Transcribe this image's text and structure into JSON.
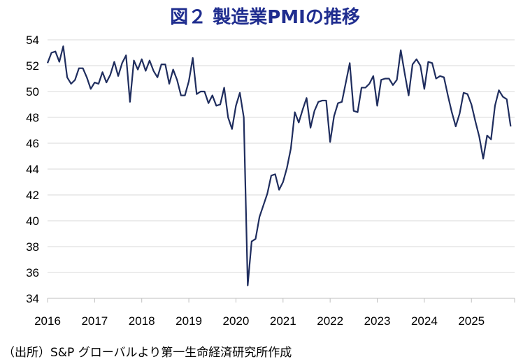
{
  "chart_data": {
    "type": "line",
    "title": "図２ 製造業PMIの推移",
    "source": "（出所）S&P グローバルより第一生命経済研究所作成",
    "ylim": [
      34,
      54
    ],
    "yticks": [
      34,
      36,
      38,
      40,
      42,
      44,
      46,
      48,
      50,
      52,
      54
    ],
    "xlim": [
      2016.0,
      2025.917
    ],
    "xticks": [
      "2016",
      "2017",
      "2018",
      "2019",
      "2020",
      "2021",
      "2022",
      "2023",
      "2024",
      "2025"
    ],
    "grid": true,
    "line_color": "#1f2d5e",
    "series": [
      {
        "values": [
          52.2,
          53.0,
          53.1,
          52.3,
          53.5,
          51.1,
          50.6,
          50.9,
          51.8,
          51.8,
          51.1,
          50.2,
          50.7,
          50.6,
          51.5,
          50.7,
          51.3,
          52.3,
          51.2,
          52.2,
          52.8,
          49.2,
          52.4,
          51.7,
          52.5,
          51.6,
          52.4,
          51.6,
          51.1,
          52.1,
          52.1,
          50.6,
          51.7,
          50.9,
          49.7,
          49.7,
          50.8,
          52.6,
          49.8,
          50.0,
          50.0,
          49.1,
          49.7,
          48.9,
          49.0,
          50.3,
          48.0,
          47.1,
          48.9,
          49.9,
          48.0,
          35.0,
          38.4,
          38.6,
          40.3,
          41.2,
          42.1,
          43.5,
          43.6,
          42.4,
          43.0,
          44.1,
          45.6,
          48.4,
          47.6,
          48.6,
          49.5,
          47.2,
          48.5,
          49.2,
          49.3,
          49.3,
          46.1,
          48.1,
          49.1,
          49.2,
          50.7,
          52.2,
          48.5,
          48.4,
          50.3,
          50.3,
          50.6,
          51.2,
          48.9,
          50.9,
          51.0,
          51.0,
          50.5,
          50.9,
          53.2,
          51.4,
          49.7,
          52.1,
          52.5,
          52.0,
          50.2,
          52.3,
          52.2,
          51.0,
          51.2,
          51.1,
          49.7,
          48.4,
          47.3,
          48.3,
          49.9,
          49.8,
          49.0,
          47.7,
          46.5,
          44.8,
          46.6,
          46.3,
          48.9,
          50.1,
          49.6,
          49.4,
          47.3
        ]
      }
    ]
  }
}
